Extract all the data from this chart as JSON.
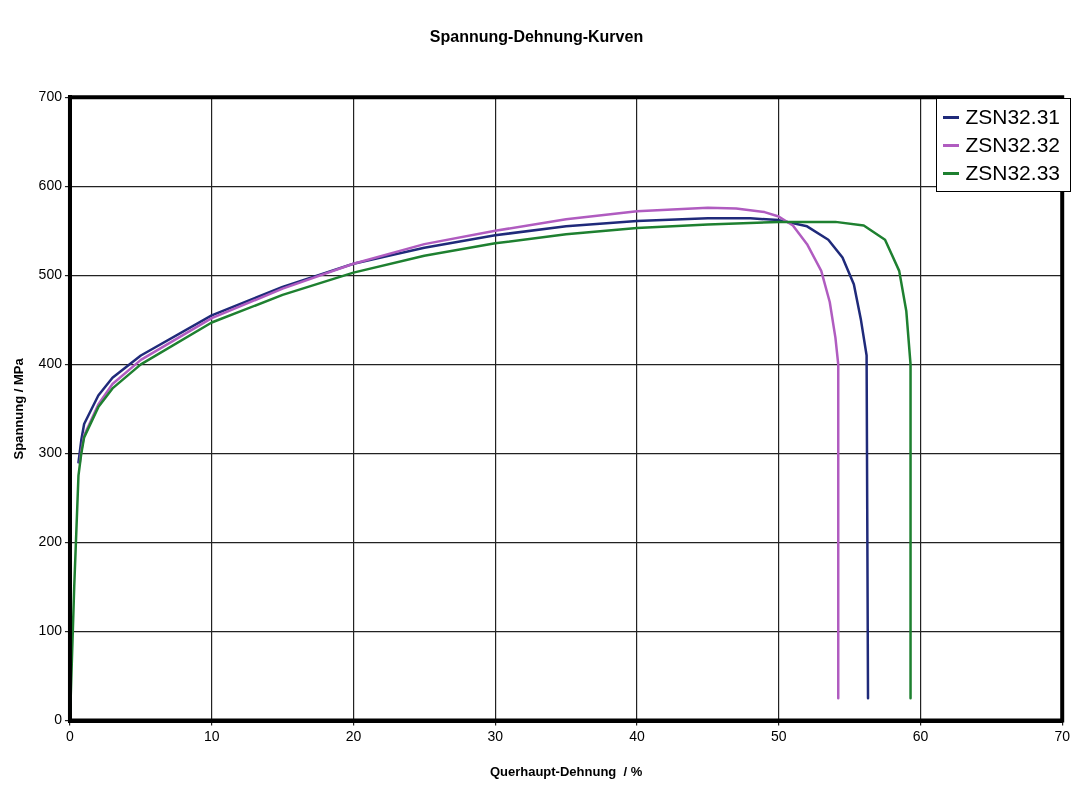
{
  "chart_data": {
    "type": "line",
    "title": "Spannung-Dehnung-Kurven",
    "xlabel": "Querhaupt-Dehnung  / %",
    "ylabel": "Spannung / MPa",
    "xlim": [
      0,
      70
    ],
    "xticks": [
      0,
      10,
      20,
      30,
      40,
      50,
      60,
      70
    ],
    "ylim": [
      0,
      700
    ],
    "yticks": [
      0,
      100,
      200,
      300,
      400,
      500,
      600,
      700
    ],
    "grid": true,
    "legend": "top right",
    "marker": "none",
    "line_style": "solid",
    "series": [
      {
        "name": "ZSN32.31",
        "color": "#1f2a7a",
        "x": [
          0.6,
          0.8,
          1,
          2,
          3,
          5,
          10,
          15,
          20,
          25,
          30,
          35,
          40,
          45,
          48,
          50,
          52,
          53.5,
          54.5,
          55.3,
          55.8,
          56.2,
          56.3
        ],
        "values": [
          290,
          315,
          333,
          365,
          385,
          410,
          455,
          487,
          513,
          531,
          545,
          555,
          561,
          564,
          564,
          562,
          555,
          540,
          520,
          490,
          450,
          410,
          25
        ]
      },
      {
        "name": "ZSN32.32",
        "color": "#b05cc0",
        "x": [
          0.7,
          0.8,
          1,
          2,
          3,
          5,
          10,
          15,
          20,
          25,
          30,
          35,
          40,
          45,
          47,
          49,
          50,
          51,
          52,
          53,
          53.6,
          54,
          54.2,
          54.2
        ],
        "values": [
          290,
          303,
          320,
          355,
          378,
          405,
          452,
          485,
          513,
          535,
          550,
          563,
          572,
          576,
          575,
          571,
          566,
          556,
          535,
          505,
          470,
          430,
          400,
          25
        ]
      },
      {
        "name": "ZSN32.33",
        "color": "#1e8030",
        "x": [
          0,
          0.3,
          0.6,
          0.8,
          1,
          2,
          3,
          5,
          10,
          15,
          20,
          25,
          30,
          35,
          40,
          45,
          50,
          54,
          56,
          57.5,
          58.5,
          59,
          59.3,
          59.3
        ],
        "values": [
          0,
          150,
          275,
          300,
          318,
          352,
          373,
          400,
          447,
          478,
          503,
          522,
          536,
          546,
          553,
          557,
          560,
          560,
          556,
          540,
          505,
          460,
          400,
          25
        ]
      }
    ]
  }
}
